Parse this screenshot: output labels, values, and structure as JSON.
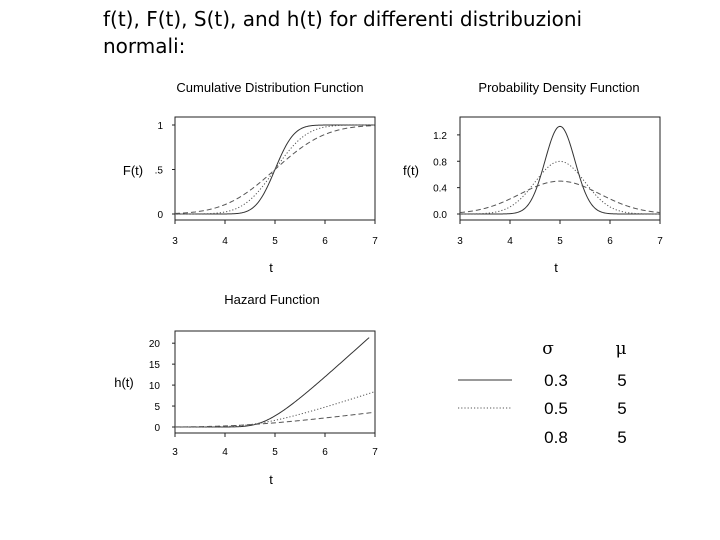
{
  "slide": {
    "title": "f(t), F(t), S(t), and h(t) for differenti distribuzioni normali:"
  },
  "chart_data": [
    {
      "type": "line",
      "title": "Cumulative Distribution Function",
      "xlabel": "t",
      "ylabel": "F(t)",
      "xlim": [
        3,
        7
      ],
      "ylim": [
        0,
        1
      ],
      "xticks": [
        "3",
        "4",
        "5",
        "6",
        "7"
      ],
      "yticks": [
        {
          "value": 0,
          "label": "0"
        },
        {
          "value": 0.5,
          "label": ".5"
        },
        {
          "value": 1,
          "label": "1"
        }
      ],
      "function": "cdf",
      "series": [
        {
          "sigma": 0.3,
          "mu": 5,
          "style": "solid"
        },
        {
          "sigma": 0.5,
          "mu": 5,
          "style": "dotted"
        },
        {
          "sigma": 0.8,
          "mu": 5,
          "style": "dashed"
        }
      ]
    },
    {
      "type": "line",
      "title": "Probability Density Function",
      "xlabel": "t",
      "ylabel": "f(t)",
      "xlim": [
        3,
        7
      ],
      "ylim": [
        0,
        1.35
      ],
      "xticks": [
        "3",
        "4",
        "5",
        "6",
        "7"
      ],
      "yticks": [
        {
          "value": 0,
          "label": "0.0"
        },
        {
          "value": 0.4,
          "label": "0.4"
        },
        {
          "value": 0.8,
          "label": "0.8"
        },
        {
          "value": 1.2,
          "label": "1.2"
        }
      ],
      "function": "pdf",
      "series": [
        {
          "sigma": 0.3,
          "mu": 5,
          "style": "solid"
        },
        {
          "sigma": 0.5,
          "mu": 5,
          "style": "dotted"
        },
        {
          "sigma": 0.8,
          "mu": 5,
          "style": "dashed"
        }
      ]
    },
    {
      "type": "line",
      "title": "Hazard Function",
      "xlabel": "t",
      "ylabel": "h(t)",
      "xlim": [
        3,
        7
      ],
      "ylim": [
        0,
        21
      ],
      "xticks": [
        "3",
        "4",
        "5",
        "6",
        "7"
      ],
      "yticks": [
        {
          "value": 0,
          "label": "0"
        },
        {
          "value": 5,
          "label": "5"
        },
        {
          "value": 10,
          "label": "10"
        },
        {
          "value": 15,
          "label": "15"
        },
        {
          "value": 20,
          "label": "20"
        }
      ],
      "function": "hazard",
      "series": [
        {
          "sigma": 0.3,
          "mu": 5,
          "style": "solid"
        },
        {
          "sigma": 0.5,
          "mu": 5,
          "style": "dotted"
        },
        {
          "sigma": 0.8,
          "mu": 5,
          "style": "dashed"
        }
      ]
    }
  ],
  "legend": {
    "sigma_header": "σ",
    "mu_header": "μ",
    "rows": [
      {
        "sigma": "0.3",
        "mu": "5",
        "style": "solid"
      },
      {
        "sigma": "0.5",
        "mu": "5",
        "style": "dotted"
      },
      {
        "sigma": "0.8",
        "mu": "5",
        "style": "dashed"
      }
    ]
  }
}
